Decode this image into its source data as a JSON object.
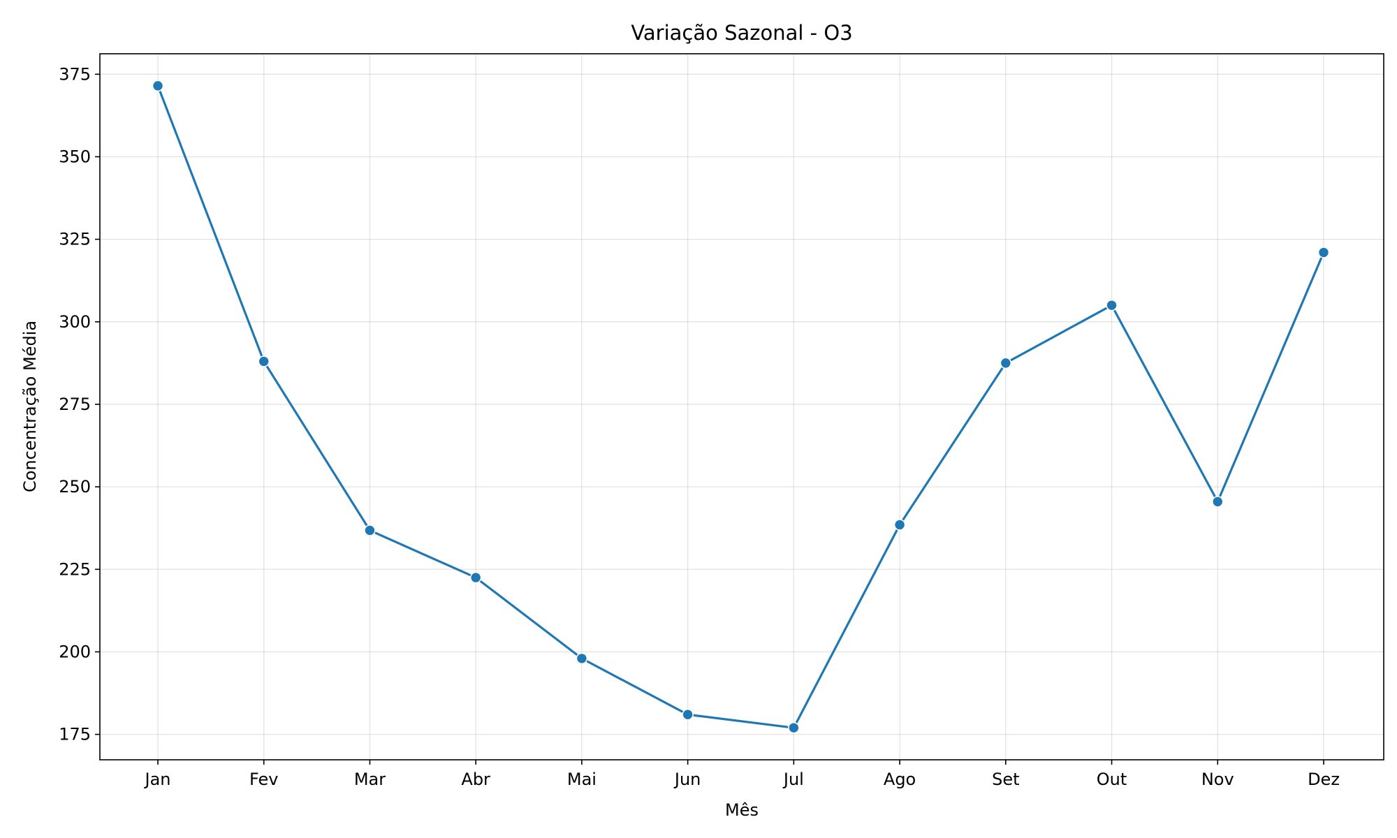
{
  "chart_data": {
    "type": "line",
    "title": "Variação Sazonal - O3",
    "xlabel": "Mês",
    "ylabel": "Concentração Média",
    "categories": [
      "Jan",
      "Fev",
      "Mar",
      "Abr",
      "Mai",
      "Jun",
      "Jul",
      "Ago",
      "Set",
      "Out",
      "Nov",
      "Dez"
    ],
    "series": [
      {
        "values": [
          371.5,
          288.0,
          236.8,
          222.5,
          198.0,
          181.0,
          177.0,
          238.5,
          287.5,
          305.0,
          245.5,
          321.0
        ],
        "color": "#1f77b4"
      }
    ],
    "yticks": [
      175,
      200,
      225,
      250,
      275,
      300,
      325,
      350,
      375
    ],
    "ylim": [
      167.3,
      381.2
    ],
    "grid": true
  }
}
